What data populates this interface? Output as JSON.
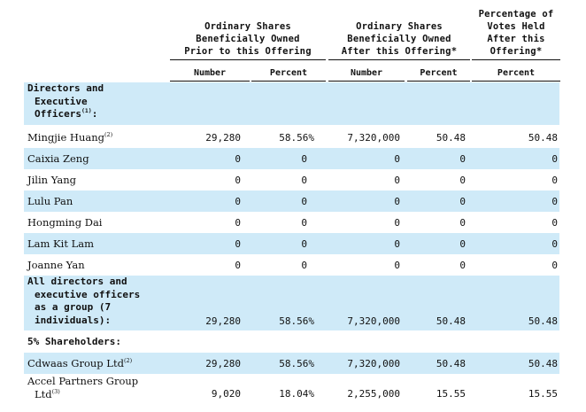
{
  "header": {
    "group1": [
      "Ordinary Shares",
      "Beneficially Owned",
      "Prior to this Offering"
    ],
    "group2": [
      "Ordinary Shares",
      "Beneficially Owned",
      "After this Offering*"
    ],
    "group3": [
      "Percentage of",
      "Votes Held",
      "After this",
      "Offering*"
    ],
    "col_number_1": "Number",
    "col_percent_1": "Percent",
    "col_number_2": "Number",
    "col_percent_2": "Percent",
    "col_percent_3": "Percent"
  },
  "sections": {
    "directors": {
      "line1": "Directors and",
      "line2": "Executive",
      "line3": "Officers",
      "sup": "(1)",
      "suffix": ":"
    },
    "all_directors": {
      "line1": "All directors and",
      "line2": "executive officers",
      "line3": "as a group (7",
      "line4": "individuals):"
    },
    "shareholders": {
      "label": "5% Shareholders:"
    }
  },
  "rows": [
    {
      "name": "Mingjie Huang",
      "sup": "(2)",
      "n1": "29,280",
      "p1": "58.56%",
      "n2": "7,320,000",
      "p2": "50.48",
      "p3": "50.48"
    },
    {
      "name": "Caixia Zeng",
      "sup": "",
      "n1": "0",
      "p1": "0",
      "n2": "0",
      "p2": "0",
      "p3": "0"
    },
    {
      "name": "Jilin Yang",
      "sup": "",
      "n1": "0",
      "p1": "0",
      "n2": "0",
      "p2": "0",
      "p3": "0"
    },
    {
      "name": "Lulu Pan",
      "sup": "",
      "n1": "0",
      "p1": "0",
      "n2": "0",
      "p2": "0",
      "p3": "0"
    },
    {
      "name": "Hongming Dai",
      "sup": "",
      "n1": "0",
      "p1": "0",
      "n2": "0",
      "p2": "0",
      "p3": "0"
    },
    {
      "name": "Lam Kit Lam",
      "sup": "",
      "n1": "0",
      "p1": "0",
      "n2": "0",
      "p2": "0",
      "p3": "0"
    },
    {
      "name": "Joanne Yan",
      "sup": "",
      "n1": "0",
      "p1": "0",
      "n2": "0",
      "p2": "0",
      "p3": "0"
    }
  ],
  "all_group_values": {
    "n1": "29,280",
    "p1": "58.56%",
    "n2": "7,320,000",
    "p2": "50.48",
    "p3": "50.48"
  },
  "holders": [
    {
      "name": "Cdwaas Group Ltd",
      "sup": "(2)",
      "n1": "29,280",
      "p1": "58.56%",
      "n2": "7,320,000",
      "p2": "50.48",
      "p3": "50.48"
    },
    {
      "name_line1": "Accel Partners Group",
      "name_line2": "Ltd",
      "sup": "(3)",
      "n1": "9,020",
      "p1": "18.04%",
      "n2": "2,255,000",
      "p2": "15.55",
      "p3": "15.55"
    }
  ]
}
